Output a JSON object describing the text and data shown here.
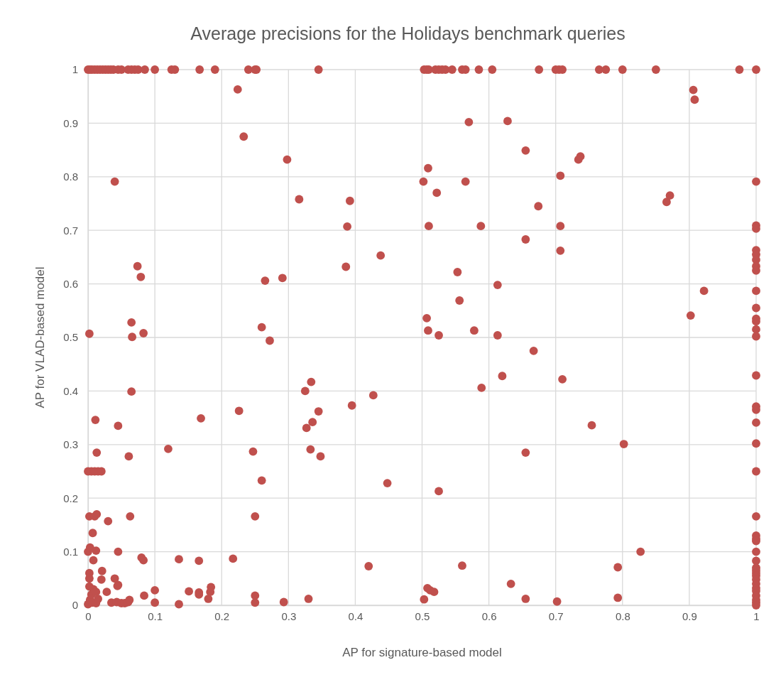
{
  "chart_data": {
    "type": "scatter",
    "title": "Average precisions for the Holidays benchmark queries",
    "xlabel": "AP for signature-based model",
    "ylabel": "AP for VLAD-based model",
    "xlim": [
      0,
      1
    ],
    "ylim": [
      0,
      1
    ],
    "xticks": [
      0,
      0.1,
      0.2,
      0.3,
      0.4,
      0.5,
      0.6,
      0.7,
      0.8,
      0.9,
      1
    ],
    "yticks": [
      0,
      0.1,
      0.2,
      0.3,
      0.4,
      0.5,
      0.6,
      0.7,
      0.8,
      0.9,
      1
    ],
    "grid": true,
    "marker": "circle",
    "series": [
      {
        "color": "#c0504d",
        "x": [
          0,
          0.003,
          0.006,
          0.01,
          0.014,
          0.018,
          0.022,
          0.026,
          0.03,
          0.034,
          0.038,
          0.045,
          0.05,
          0.06,
          0.065,
          0.07,
          0.075,
          0.085,
          0.1,
          0.125,
          0.13,
          0.167,
          0.19,
          0.24,
          0.25,
          0.252,
          0.345,
          0.503,
          0.507,
          0.51,
          0.52,
          0.525,
          0.53,
          0.535,
          0.545,
          0.56,
          0.565,
          0.585,
          0.605,
          0.675,
          0.7,
          0.705,
          0.71,
          0.765,
          0.775,
          0.8,
          0.85,
          0.975,
          1,
          0.224,
          0.233,
          0.298,
          0.04,
          0.316,
          0.392,
          0.388,
          0.074,
          0.079,
          0.265,
          0.291,
          0.386,
          0.438,
          0.065,
          0.066,
          0.083,
          0.002,
          0.26,
          0.272,
          0.065,
          0.325,
          0.334,
          0.226,
          0.169,
          0.011,
          0.045,
          0.336,
          0.327,
          0.345,
          0.395,
          0.427,
          0.013,
          0.061,
          0.12,
          0.247,
          0.333,
          0.348,
          0.26,
          0.448,
          0,
          0.005,
          0.01,
          0.015,
          0.02,
          0.002,
          0.01,
          0.013,
          0.063,
          0.25,
          0.007,
          0.03,
          0,
          0.003,
          0.008,
          0.012,
          0.045,
          0.08,
          0.083,
          0.136,
          0.166,
          0.217,
          0.42,
          0.002,
          0.021,
          0.04,
          0.045,
          0.02,
          0.002,
          0.028,
          0.1,
          0.151,
          0.166,
          0.166,
          0.184,
          0.183,
          0.18,
          0.084,
          0.044,
          0.035,
          0.043,
          0.05,
          0.055,
          0.06,
          0.062,
          0.1,
          0.136,
          0.25,
          0.25,
          0.293,
          0.33,
          0,
          0.003,
          0.005,
          0.008,
          0.012,
          0.002,
          0.006,
          0.012,
          0.015,
          0.57,
          0.628,
          0.906,
          0.908,
          0.509,
          0.655,
          0.734,
          0.737,
          0.502,
          0.565,
          0.522,
          0.707,
          0.51,
          0.588,
          0.707,
          0.674,
          0.866,
          0.871,
          0.655,
          0.707,
          0.553,
          0.613,
          0.556,
          0.922,
          0.902,
          0.507,
          0.509,
          0.525,
          0.578,
          0.613,
          0.667,
          0.62,
          0.71,
          0.589,
          0.754,
          0.802,
          0.655,
          0.525,
          0.827,
          0.793,
          0.56,
          0.633,
          0.508,
          0.512,
          0.518,
          0.503,
          0.655,
          0.702,
          0.793,
          1,
          1,
          1,
          1,
          1,
          1,
          1,
          1,
          1,
          1,
          1,
          1,
          1,
          1,
          1,
          1,
          1,
          1,
          1,
          1,
          1,
          1,
          1,
          1,
          1,
          1,
          1,
          1,
          1,
          1,
          1,
          1,
          1,
          1,
          1,
          1,
          1,
          1
        ],
        "values": [
          1,
          1,
          1,
          1,
          1,
          1,
          1,
          1,
          1,
          1,
          1,
          1,
          1,
          1,
          1,
          1,
          1,
          1,
          1,
          1,
          1,
          1,
          1,
          1,
          1,
          1,
          1,
          1,
          1,
          1,
          1,
          1,
          1,
          1,
          1,
          1,
          1,
          1,
          1,
          1,
          1,
          1,
          1,
          1,
          1,
          1,
          1,
          1,
          1,
          0.963,
          0.875,
          0.832,
          0.791,
          0.758,
          0.755,
          0.707,
          0.633,
          0.613,
          0.606,
          0.611,
          0.632,
          0.653,
          0.528,
          0.501,
          0.508,
          0.507,
          0.519,
          0.494,
          0.399,
          0.4,
          0.417,
          0.363,
          0.349,
          0.346,
          0.335,
          0.342,
          0.331,
          0.362,
          0.373,
          0.392,
          0.285,
          0.278,
          0.292,
          0.287,
          0.291,
          0.278,
          0.233,
          0.228,
          0.25,
          0.25,
          0.25,
          0.25,
          0.25,
          0.166,
          0.166,
          0.17,
          0.166,
          0.166,
          0.135,
          0.157,
          0.1,
          0.108,
          0.084,
          0.102,
          0.1,
          0.089,
          0.084,
          0.086,
          0.083,
          0.087,
          0.073,
          0.06,
          0.064,
          0.05,
          0.038,
          0.048,
          0.05,
          0.025,
          0.028,
          0.026,
          0.024,
          0.02,
          0.034,
          0.025,
          0.012,
          0.018,
          0.036,
          0.005,
          0.006,
          0.004,
          0.004,
          0.006,
          0.01,
          0.005,
          0.002,
          0.005,
          0.018,
          0.006,
          0.012,
          0.002,
          0.01,
          0.02,
          0.03,
          0.025,
          0.035,
          0.005,
          0.004,
          0.012,
          0.902,
          0.904,
          0.962,
          0.944,
          0.816,
          0.849,
          0.832,
          0.838,
          0.791,
          0.791,
          0.77,
          0.802,
          0.708,
          0.708,
          0.708,
          0.745,
          0.753,
          0.765,
          0.683,
          0.662,
          0.622,
          0.598,
          0.569,
          0.587,
          0.541,
          0.536,
          0.513,
          0.504,
          0.513,
          0.504,
          0.475,
          0.428,
          0.422,
          0.406,
          0.336,
          0.301,
          0.285,
          0.213,
          0.1,
          0.071,
          0.074,
          0.04,
          0.032,
          0.028,
          0.025,
          0.011,
          0.012,
          0.007,
          0.014,
          0.791,
          0.709,
          0.703,
          0.663,
          0.655,
          0.645,
          0.633,
          0.625,
          0.587,
          0.555,
          0.535,
          0.53,
          0.515,
          0.502,
          0.429,
          0.371,
          0.365,
          0.341,
          0.302,
          0.25,
          0.166,
          0.13,
          0.124,
          0.12,
          0.1,
          0.083,
          0.07,
          0.065,
          0.06,
          0.055,
          0.048,
          0.04,
          0.032,
          0.027,
          0.018,
          0.01,
          0.005,
          0
        ]
      }
    ]
  }
}
